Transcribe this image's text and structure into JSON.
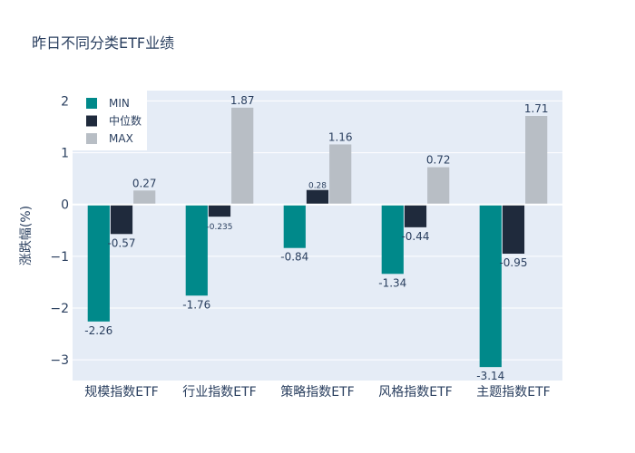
{
  "chart_data": {
    "type": "bar",
    "title": "昨日不同分类ETF业绩",
    "xlabel": "",
    "ylabel": "涨跌幅(%)",
    "ylim": [
      -3.4,
      2.2
    ],
    "yticks": [
      -3,
      -2,
      -1,
      0,
      1,
      2
    ],
    "ytick_labels": [
      "−3",
      "−2",
      "−1",
      "0",
      "1",
      "2"
    ],
    "categories": [
      "规模指数ETF",
      "行业指数ETF",
      "策略指数ETF",
      "风格指数ETF",
      "主题指数ETF"
    ],
    "series": [
      {
        "name": "MIN",
        "color": "#00898a",
        "values": [
          -2.26,
          -1.76,
          -0.84,
          -1.34,
          -3.14
        ],
        "labels": [
          "-2.26",
          "-1.76",
          "-0.84",
          "-1.34",
          "-3.14"
        ]
      },
      {
        "name": "中位数",
        "color": "#1f2a3c",
        "values": [
          -0.57,
          -0.235,
          0.28,
          -0.44,
          -0.95
        ],
        "labels": [
          "-0.57",
          "-0.235",
          "0.28",
          "-0.44",
          "-0.95"
        ]
      },
      {
        "name": "MAX",
        "color": "#b8bec5",
        "values": [
          0.27,
          1.87,
          1.16,
          0.72,
          1.71
        ],
        "labels": [
          "0.27",
          "1.87",
          "1.16",
          "0.72",
          "1.71"
        ]
      }
    ],
    "grid": true,
    "legend": "top-left"
  }
}
